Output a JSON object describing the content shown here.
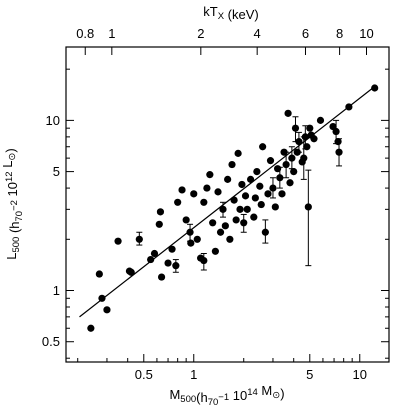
{
  "chart_data": {
    "type": "scatter",
    "title": "",
    "xlabel": "M500(h70−1 1014 M⊙)",
    "xlabel_parts": [
      {
        "text": "M",
        "style": "normal"
      },
      {
        "text": "500",
        "style": "sub"
      },
      {
        "text": "(h",
        "style": "normal"
      },
      {
        "text": "70",
        "style": "sub"
      },
      {
        "text": "−1",
        "style": "sup"
      },
      {
        "text": " 10",
        "style": "normal"
      },
      {
        "text": "14",
        "style": "sup"
      },
      {
        "text": " M",
        "style": "normal"
      },
      {
        "text": "⊙",
        "style": "sub"
      },
      {
        "text": ")",
        "style": "normal"
      }
    ],
    "ylabel": "L500 (h70−2 1012 L⊙)",
    "ylabel_parts": [
      {
        "text": "L",
        "style": "normal"
      },
      {
        "text": "500",
        "style": "sub"
      },
      {
        "text": " (h",
        "style": "normal"
      },
      {
        "text": "70",
        "style": "sub"
      },
      {
        "text": "−2",
        "style": "sup"
      },
      {
        "text": " 10",
        "style": "normal"
      },
      {
        "text": "12",
        "style": "sup"
      },
      {
        "text": " L",
        "style": "normal"
      },
      {
        "text": "⊙",
        "style": "sub"
      },
      {
        "text": ")",
        "style": "normal"
      }
    ],
    "top_xlabel": "kTX (keV)",
    "top_xlabel_parts": [
      {
        "text": "kT",
        "style": "normal"
      },
      {
        "text": "X",
        "style": "sub"
      },
      {
        "text": " (keV)",
        "style": "normal"
      }
    ],
    "xscale": "log",
    "yscale": "log",
    "xlim": [
      0.17,
      15.0
    ],
    "ylim": [
      0.38,
      27.0
    ],
    "x_ticks": [
      {
        "value": 0.5,
        "label": "0.5"
      },
      {
        "value": 1,
        "label": "1"
      },
      {
        "value": 5,
        "label": "5"
      },
      {
        "value": 10,
        "label": "10"
      }
    ],
    "y_ticks": [
      {
        "value": 0.5,
        "label": "0.5"
      },
      {
        "value": 1,
        "label": "1"
      },
      {
        "value": 5,
        "label": "5"
      },
      {
        "value": 10,
        "label": "10"
      }
    ],
    "top_ticks": [
      {
        "mass": 0.222,
        "label": "0.8"
      },
      {
        "mass": 0.321,
        "label": "1"
      },
      {
        "mass": 1.103,
        "label": "2"
      },
      {
        "mass": 2.41,
        "label": "4"
      },
      {
        "mass": 4.71,
        "label": "6"
      },
      {
        "mass": 7.56,
        "label": "8"
      },
      {
        "mass": 10.98,
        "label": "10"
      }
    ],
    "grid": false,
    "legend": "none",
    "fit_line": {
      "x": [
        0.205,
        12.5
      ],
      "y": [
        0.7,
        16.0
      ]
    },
    "points": [
      {
        "x": 0.24,
        "y": 0.6
      },
      {
        "x": 0.27,
        "y": 1.25
      },
      {
        "x": 0.28,
        "y": 0.9
      },
      {
        "x": 0.3,
        "y": 0.77
      },
      {
        "x": 0.35,
        "y": 1.95
      },
      {
        "x": 0.41,
        "y": 1.3
      },
      {
        "x": 0.42,
        "y": 1.28
      },
      {
        "x": 0.47,
        "y": 2.0,
        "err": [
          1.85,
          2.2
        ]
      },
      {
        "x": 0.55,
        "y": 1.52
      },
      {
        "x": 0.58,
        "y": 1.65
      },
      {
        "x": 0.62,
        "y": 2.45
      },
      {
        "x": 0.63,
        "y": 2.9
      },
      {
        "x": 0.64,
        "y": 1.2
      },
      {
        "x": 0.7,
        "y": 1.45
      },
      {
        "x": 0.74,
        "y": 1.75
      },
      {
        "x": 0.78,
        "y": 1.4,
        "err": [
          1.28,
          1.52
        ]
      },
      {
        "x": 0.8,
        "y": 3.3
      },
      {
        "x": 0.85,
        "y": 3.9
      },
      {
        "x": 0.9,
        "y": 2.6
      },
      {
        "x": 0.95,
        "y": 2.2,
        "err": [
          1.95,
          2.45
        ]
      },
      {
        "x": 0.96,
        "y": 1.9
      },
      {
        "x": 1.0,
        "y": 3.7
      },
      {
        "x": 1.05,
        "y": 2.0
      },
      {
        "x": 1.1,
        "y": 1.55
      },
      {
        "x": 1.15,
        "y": 3.3
      },
      {
        "x": 1.15,
        "y": 1.5,
        "err": [
          1.32,
          1.65
        ]
      },
      {
        "x": 1.2,
        "y": 4.0
      },
      {
        "x": 1.25,
        "y": 4.8
      },
      {
        "x": 1.3,
        "y": 2.5
      },
      {
        "x": 1.35,
        "y": 1.7
      },
      {
        "x": 1.4,
        "y": 3.8
      },
      {
        "x": 1.45,
        "y": 2.2
      },
      {
        "x": 1.5,
        "y": 3.0,
        "err": [
          2.7,
          3.3
        ]
      },
      {
        "x": 1.55,
        "y": 2.4
      },
      {
        "x": 1.6,
        "y": 4.5
      },
      {
        "x": 1.65,
        "y": 2.0
      },
      {
        "x": 1.7,
        "y": 5.5
      },
      {
        "x": 1.75,
        "y": 3.4
      },
      {
        "x": 1.8,
        "y": 2.6
      },
      {
        "x": 1.85,
        "y": 6.4
      },
      {
        "x": 1.9,
        "y": 3.0
      },
      {
        "x": 1.95,
        "y": 4.2
      },
      {
        "x": 2.0,
        "y": 2.5,
        "err": [
          2.2,
          2.8
        ]
      },
      {
        "x": 2.05,
        "y": 3.6
      },
      {
        "x": 2.1,
        "y": 3.0
      },
      {
        "x": 2.2,
        "y": 4.5
      },
      {
        "x": 2.3,
        "y": 2.7
      },
      {
        "x": 2.35,
        "y": 3.5
      },
      {
        "x": 2.4,
        "y": 5.0
      },
      {
        "x": 2.5,
        "y": 4.1
      },
      {
        "x": 2.55,
        "y": 3.2
      },
      {
        "x": 2.6,
        "y": 7.0
      },
      {
        "x": 2.7,
        "y": 2.2,
        "err": [
          1.9,
          2.6
        ]
      },
      {
        "x": 2.8,
        "y": 3.7
      },
      {
        "x": 2.9,
        "y": 5.8
      },
      {
        "x": 3.0,
        "y": 4.0,
        "err": [
          3.5,
          4.6
        ]
      },
      {
        "x": 3.1,
        "y": 3.1
      },
      {
        "x": 3.2,
        "y": 5.2
      },
      {
        "x": 3.3,
        "y": 4.6,
        "err": [
          4.0,
          5.3
        ]
      },
      {
        "x": 3.4,
        "y": 3.7
      },
      {
        "x": 3.5,
        "y": 6.5
      },
      {
        "x": 3.6,
        "y": 5.5,
        "err": [
          4.6,
          6.5
        ]
      },
      {
        "x": 3.7,
        "y": 11.0
      },
      {
        "x": 3.8,
        "y": 4.3
      },
      {
        "x": 3.9,
        "y": 6.0,
        "err": [
          5.2,
          7.0
        ]
      },
      {
        "x": 4.0,
        "y": 5.0
      },
      {
        "x": 4.1,
        "y": 9.0,
        "err": [
          7.5,
          10.5
        ]
      },
      {
        "x": 4.2,
        "y": 6.5
      },
      {
        "x": 4.3,
        "y": 7.5,
        "err": [
          6.5,
          8.5
        ]
      },
      {
        "x": 4.5,
        "y": 5.7
      },
      {
        "x": 4.6,
        "y": 6.0,
        "err": [
          4.5,
          8.0
        ]
      },
      {
        "x": 4.7,
        "y": 8.0,
        "err": [
          6.8,
          9.3
        ]
      },
      {
        "x": 4.8,
        "y": 7.0
      },
      {
        "x": 4.9,
        "y": 3.1,
        "err": [
          1.4,
          5.1
        ]
      },
      {
        "x": 5.0,
        "y": 9.0
      },
      {
        "x": 5.1,
        "y": 8.2
      },
      {
        "x": 5.3,
        "y": 7.8
      },
      {
        "x": 5.8,
        "y": 10.0
      },
      {
        "x": 6.9,
        "y": 9.2
      },
      {
        "x": 7.2,
        "y": 8.6,
        "err": [
          7.3,
          10.0
        ]
      },
      {
        "x": 7.4,
        "y": 7.5
      },
      {
        "x": 7.5,
        "y": 6.5,
        "err": [
          5.4,
          7.8
        ]
      },
      {
        "x": 8.6,
        "y": 12.0
      },
      {
        "x": 12.3,
        "y": 15.5
      }
    ]
  }
}
